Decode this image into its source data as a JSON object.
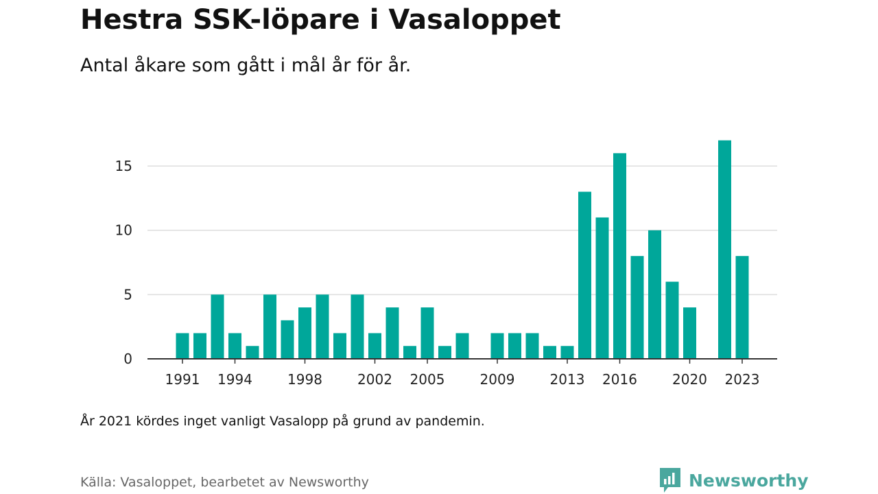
{
  "header": {
    "title": "Hestra SSK-löpare i Vasaloppet",
    "subtitle": "Antal åkare som gått i mål år för år."
  },
  "footer": {
    "note": "År 2021 kördes inget vanligt Vasalopp på grund av pandemin.",
    "source": "Källa: Vasaloppet, bearbetet av Newsworthy",
    "brand": "Newsworthy"
  },
  "colors": {
    "bar": "#00a79a",
    "grid": "#dddddd",
    "axis": "#333333",
    "brand": "#4aa79e"
  },
  "chart_data": {
    "type": "bar",
    "title": "Hestra SSK-löpare i Vasaloppet",
    "subtitle": "Antal åkare som gått i mål år för år.",
    "categories": [
      1991,
      1992,
      1993,
      1994,
      1995,
      1996,
      1997,
      1998,
      1999,
      2000,
      2001,
      2002,
      2003,
      2004,
      2005,
      2006,
      2007,
      2008,
      2009,
      2010,
      2011,
      2012,
      2013,
      2014,
      2015,
      2016,
      2017,
      2018,
      2019,
      2020,
      2021,
      2022,
      2023
    ],
    "values": [
      2,
      2,
      5,
      2,
      1,
      5,
      3,
      4,
      5,
      2,
      5,
      2,
      4,
      1,
      4,
      1,
      2,
      null,
      2,
      2,
      2,
      1,
      1,
      13,
      11,
      16,
      8,
      10,
      6,
      4,
      null,
      17,
      8
    ],
    "x_tick_labels": [
      "1991",
      "1994",
      "1998",
      "2002",
      "2005",
      "2009",
      "2013",
      "2016",
      "2020",
      "2023"
    ],
    "y_ticks": [
      0,
      5,
      10,
      15
    ],
    "ylim": [
      0,
      18
    ],
    "xlabel": "",
    "ylabel": "",
    "grid": true,
    "legend": "none"
  }
}
